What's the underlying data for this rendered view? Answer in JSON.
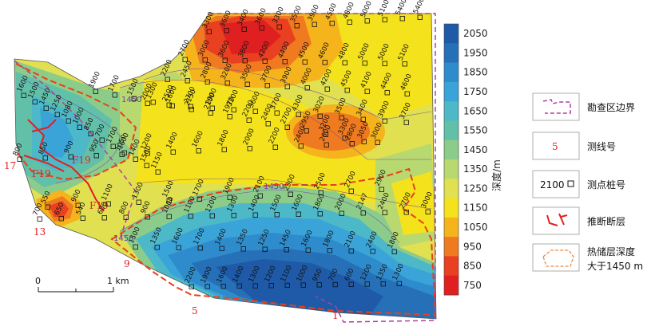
{
  "colorbar": {
    "title": "深度/m",
    "ticks": [
      "2050",
      "1950",
      "1850",
      "1750",
      "1650",
      "1550",
      "1450",
      "1350",
      "1250",
      "1150",
      "1050",
      "950",
      "850",
      "750"
    ],
    "colors": [
      "#1e5aa8",
      "#2670b8",
      "#2f8ccc",
      "#3aa4d8",
      "#4cb8c8",
      "#62c0a8",
      "#8ccc8a",
      "#b8d870",
      "#e0e050",
      "#f4e21c",
      "#f5b41c",
      "#f07a20",
      "#e84020",
      "#e02020"
    ]
  },
  "legend": {
    "items": [
      {
        "id": "survey-boundary",
        "label": "勘查区边界"
      },
      {
        "id": "line-number",
        "label": "测线号",
        "sample": "5"
      },
      {
        "id": "station-number",
        "label": "测点桩号",
        "sample": "2100"
      },
      {
        "id": "inferred-fault",
        "label": "推断断层"
      },
      {
        "id": "reservoir-depth",
        "label": "热储层深度",
        "label2": "大于1450 m"
      }
    ]
  },
  "scale": {
    "left": "0",
    "right": "1 km"
  },
  "line_numbers": [
    "17",
    "13",
    "9",
    "5",
    "1"
  ],
  "faults": [
    "F19",
    "F19",
    "F19"
  ],
  "contour_labels": [
    "1450",
    "1450",
    "1450"
  ],
  "stations": [
    "3300",
    "3600",
    "3400",
    "3600",
    "3300",
    "3500",
    "3900",
    "4500",
    "4800",
    "5000",
    "5100",
    "5400",
    "5400",
    "2700",
    "3000",
    "3600",
    "3800",
    "4200",
    "4400",
    "4500",
    "4600",
    "4800",
    "5000",
    "5000",
    "5100",
    "2200",
    "2450",
    "2800",
    "3200",
    "3500",
    "3700",
    "3900",
    "4000",
    "4200",
    "4500",
    "4100",
    "4400",
    "4600",
    "2000",
    "2500",
    "2700",
    "2900",
    "3200",
    "3600",
    "3700",
    "4300",
    "3020",
    "3500",
    "3400",
    "3900",
    "3700",
    "1900",
    "1700",
    "1500",
    "1300",
    "1600",
    "2150",
    "2100",
    "1970",
    "2200",
    "2400",
    "2700",
    "2950",
    "3200",
    "3300",
    "3050",
    "1600",
    "1500",
    "1450",
    "1250",
    "1080",
    "1000",
    "850",
    "700",
    "1700",
    "1600",
    "1400",
    "1500",
    "1150",
    "800",
    "850",
    "900",
    "950",
    "1050",
    "1200",
    "1400",
    "1600",
    "1800",
    "2000",
    "2200",
    "2400",
    "2600",
    "2800",
    "3000",
    "550",
    "900",
    "1100",
    "1300",
    "1500",
    "1700",
    "1900",
    "2100",
    "2300",
    "2500",
    "2700",
    "2900",
    "700",
    "650",
    "540",
    "600",
    "800",
    "900",
    "1000",
    "1100",
    "1200",
    "1300",
    "1400",
    "1500",
    "1600",
    "1800",
    "2000",
    "2147",
    "2400",
    "2700",
    "3000",
    "1500",
    "1350",
    "1600",
    "1700",
    "1400",
    "1350",
    "1250",
    "1450",
    "1600",
    "1800",
    "2100",
    "2400",
    "1800",
    "2200",
    "1900",
    "1600",
    "1400",
    "1300",
    "1200",
    "1100",
    "1000",
    "950",
    "700",
    "600",
    "1200",
    "1350",
    "1300"
  ]
}
